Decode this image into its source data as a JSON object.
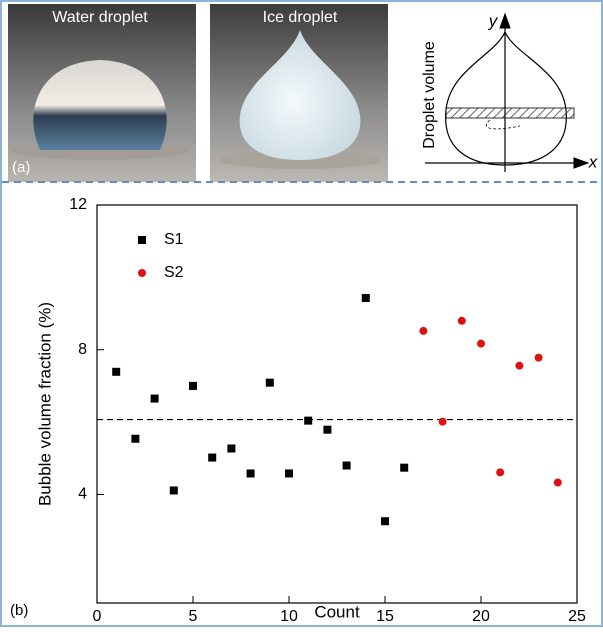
{
  "panel_a": {
    "label": "(a)",
    "photos": [
      {
        "label": "Water droplet"
      },
      {
        "label": "Ice droplet"
      }
    ],
    "diagram": {
      "y_label": "Droplet volume",
      "y_axis": "y",
      "x_axis": "x"
    }
  },
  "chart_data": {
    "type": "scatter",
    "panel_label": "(b)",
    "x_label": "Count",
    "y_label": "Bubble volume fraction (%)",
    "xlim": [
      0,
      25
    ],
    "xticks": [
      0,
      5,
      10,
      15,
      20,
      25
    ],
    "ylim": [
      1,
      12
    ],
    "yticks": [
      4,
      8,
      12
    ],
    "legend": "upper left",
    "reference_line": 6.07,
    "series": [
      {
        "name": "S1",
        "color": "#000000",
        "marker": "square",
        "x": [
          1,
          2,
          3,
          4,
          5,
          6,
          7,
          8,
          9,
          10,
          11,
          12,
          13,
          14,
          15,
          16
        ],
        "values": [
          7.39,
          5.54,
          6.65,
          4.11,
          7.0,
          5.02,
          5.27,
          4.58,
          7.09,
          4.58,
          6.04,
          5.79,
          4.8,
          9.43,
          3.26,
          4.74
        ]
      },
      {
        "name": "S2",
        "color": "#dd1111",
        "marker": "circle",
        "x": [
          17,
          18,
          19,
          20,
          21,
          22,
          23,
          24
        ],
        "values": [
          8.52,
          6.01,
          8.8,
          8.17,
          4.61,
          7.56,
          7.78,
          4.33
        ]
      }
    ]
  }
}
